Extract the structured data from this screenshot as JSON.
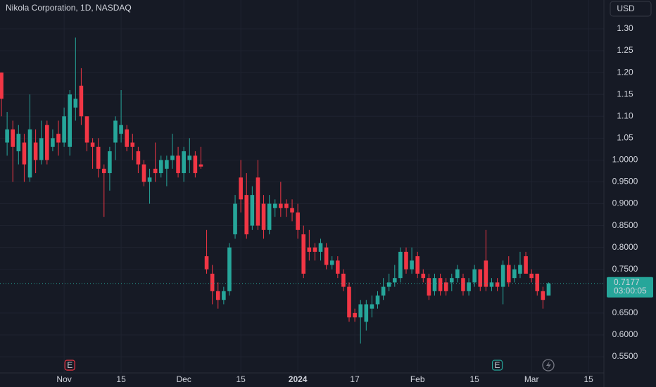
{
  "chart_data": {
    "type": "candlestick",
    "title": "Nikola Corporation, 1D, NASDAQ",
    "currency": "USD",
    "last_price": 0.7177,
    "countdown": "03:00:05",
    "up_color": "#26a69a",
    "down_color": "#f23645",
    "grid": true,
    "event_labels": [
      "E",
      "E"
    ],
    "open": [
      1.2,
      1.04,
      1.07,
      1.02,
      1.04,
      0.96,
      1.04,
      1.0,
      1.08,
      1.03,
      1.06,
      1.04,
      1.03,
      1.12,
      1.17,
      1.1,
      1.04,
      1.03,
      0.98,
      0.97,
      1.04,
      1.06,
      1.07,
      1.04,
      1.02,
      0.99,
      0.95,
      0.98,
      0.97,
      0.98,
      1.0,
      1.01,
      0.97,
      1.0,
      1.01,
      0.99,
      0.78,
      0.74,
      0.7,
      0.68,
      0.7,
      0.83,
      0.96,
      0.92,
      0.85,
      0.96,
      0.9,
      0.84,
      0.89,
      0.9,
      0.9,
      0.89,
      0.88,
      0.83,
      0.8,
      0.8,
      0.79,
      0.8,
      0.76,
      0.77,
      0.74,
      0.71,
      0.65,
      0.64,
      0.63,
      0.66,
      0.67,
      0.69,
      0.71,
      0.72,
      0.73,
      0.79,
      0.75,
      0.78,
      0.74,
      0.73,
      0.7,
      0.73,
      0.72,
      0.72,
      0.73,
      0.73,
      0.7,
      0.72,
      0.75,
      0.77,
      0.71,
      0.72,
      0.71,
      0.76,
      0.73,
      0.74,
      0.78,
      0.74,
      0.74,
      0.7,
      0.69
    ],
    "high": [
      1.2,
      1.11,
      1.09,
      1.08,
      1.06,
      1.15,
      1.07,
      1.09,
      1.09,
      1.07,
      1.09,
      1.12,
      1.16,
      1.28,
      1.21,
      1.1,
      1.05,
      1.05,
      0.99,
      1.03,
      1.1,
      1.16,
      1.08,
      1.06,
      1.03,
      1.0,
      0.98,
      1.04,
      1.01,
      1.01,
      1.06,
      1.03,
      1.03,
      1.05,
      1.02,
      1.03,
      0.84,
      0.76,
      0.72,
      0.71,
      0.81,
      0.92,
      1.0,
      0.97,
      0.94,
      1.0,
      0.92,
      0.92,
      0.91,
      0.95,
      0.91,
      0.91,
      0.9,
      0.85,
      0.84,
      0.81,
      0.82,
      0.81,
      0.78,
      0.78,
      0.75,
      0.72,
      0.66,
      0.68,
      0.68,
      0.69,
      0.7,
      0.73,
      0.74,
      0.76,
      0.8,
      0.8,
      0.8,
      0.79,
      0.75,
      0.74,
      0.74,
      0.74,
      0.73,
      0.74,
      0.76,
      0.74,
      0.73,
      0.76,
      0.75,
      0.84,
      0.73,
      0.73,
      0.77,
      0.78,
      0.76,
      0.79,
      0.79,
      0.75,
      0.74,
      0.71,
      0.72
    ],
    "low": [
      1.1,
      1.01,
      0.95,
      0.99,
      0.95,
      0.95,
      0.97,
      0.99,
      0.99,
      1.02,
      1.01,
      1.03,
      1.01,
      1.09,
      1.08,
      1.02,
      0.98,
      0.96,
      0.87,
      0.93,
      1.0,
      1.04,
      1.02,
      1.0,
      0.97,
      0.94,
      0.9,
      0.95,
      0.96,
      0.94,
      0.98,
      0.96,
      0.95,
      0.97,
      0.96,
      0.98,
      0.74,
      0.67,
      0.66,
      0.67,
      0.69,
      0.82,
      0.88,
      0.82,
      0.84,
      0.84,
      0.82,
      0.83,
      0.87,
      0.87,
      0.87,
      0.86,
      0.82,
      0.73,
      0.77,
      0.77,
      0.77,
      0.75,
      0.75,
      0.73,
      0.7,
      0.63,
      0.63,
      0.58,
      0.61,
      0.64,
      0.66,
      0.68,
      0.7,
      0.71,
      0.72,
      0.74,
      0.74,
      0.73,
      0.72,
      0.68,
      0.69,
      0.69,
      0.69,
      0.7,
      0.72,
      0.69,
      0.69,
      0.71,
      0.7,
      0.7,
      0.7,
      0.7,
      0.67,
      0.71,
      0.72,
      0.73,
      0.74,
      0.72,
      0.69,
      0.66,
      0.69
    ],
    "close": [
      1.14,
      1.07,
      1.03,
      1.06,
      0.99,
      1.07,
      1.0,
      1.05,
      1.0,
      1.05,
      1.04,
      1.1,
      1.15,
      1.14,
      1.1,
      1.04,
      1.03,
      0.98,
      0.97,
      1.02,
      1.09,
      1.08,
      1.03,
      1.03,
      0.99,
      0.95,
      0.96,
      0.97,
      1.0,
      1.0,
      1.01,
      0.97,
      1.02,
      1.01,
      0.97,
      0.985,
      0.75,
      0.7,
      0.68,
      0.7,
      0.8,
      0.9,
      0.91,
      0.83,
      0.92,
      0.85,
      0.84,
      0.9,
      0.9,
      0.89,
      0.89,
      0.88,
      0.84,
      0.74,
      0.79,
      0.79,
      0.81,
      0.76,
      0.77,
      0.74,
      0.71,
      0.64,
      0.64,
      0.67,
      0.67,
      0.67,
      0.69,
      0.71,
      0.72,
      0.73,
      0.79,
      0.75,
      0.77,
      0.74,
      0.73,
      0.69,
      0.73,
      0.7,
      0.7,
      0.73,
      0.75,
      0.7,
      0.72,
      0.75,
      0.71,
      0.71,
      0.72,
      0.71,
      0.76,
      0.72,
      0.75,
      0.76,
      0.74,
      0.73,
      0.7,
      0.68,
      0.7177
    ],
    "xlim": [
      -0.25,
      105.7
    ],
    "xticks": [
      {
        "value": 11,
        "label": "Nov"
      },
      {
        "value": 21,
        "label": "15"
      },
      {
        "value": 32,
        "label": "Dec"
      },
      {
        "value": 42,
        "label": "15"
      },
      {
        "value": 52,
        "label": "2024"
      },
      {
        "value": 62,
        "label": "17"
      },
      {
        "value": 73,
        "label": "Feb"
      },
      {
        "value": 83,
        "label": "15"
      },
      {
        "value": 93,
        "label": "Mar"
      },
      {
        "value": 103,
        "label": "15"
      }
    ],
    "ylim": [
      0.513,
      1.366
    ],
    "yticks": [
      {
        "value": 1.3,
        "label": "1.30"
      },
      {
        "value": 1.25,
        "label": "1.25"
      },
      {
        "value": 1.2,
        "label": "1.20"
      },
      {
        "value": 1.15,
        "label": "1.15"
      },
      {
        "value": 1.1,
        "label": "1.10"
      },
      {
        "value": 1.05,
        "label": "1.05"
      },
      {
        "value": 1.0,
        "label": "1.0000"
      },
      {
        "value": 0.95,
        "label": "0.9500"
      },
      {
        "value": 0.9,
        "label": "0.9000"
      },
      {
        "value": 0.85,
        "label": "0.8500"
      },
      {
        "value": 0.8,
        "label": "0.8000"
      },
      {
        "value": 0.75,
        "label": "0.7500"
      },
      {
        "value": 0.65,
        "label": "0.6500"
      },
      {
        "value": 0.6,
        "label": "0.6000"
      },
      {
        "value": 0.55,
        "label": "0.5500"
      }
    ]
  }
}
